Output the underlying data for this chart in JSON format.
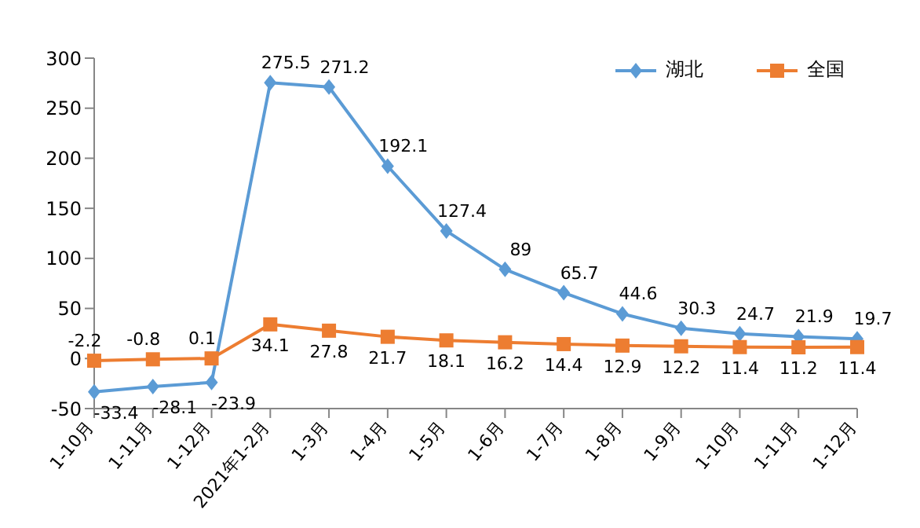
{
  "chart_data": {
    "type": "line",
    "categories": [
      "1-10月",
      "1-11月",
      "1-12月",
      "2021年1-2月",
      "1-3月",
      "1-4月",
      "1-5月",
      "1-6月",
      "1-7月",
      "1-8月",
      "1-9月",
      "1-10月",
      "1-11月",
      "1-12月"
    ],
    "series": [
      {
        "name": "湖北",
        "color": "#5b9bd5",
        "marker": "diamond",
        "values": [
          -33.4,
          -28.1,
          -23.9,
          275.5,
          271.2,
          192.1,
          127.4,
          89,
          65.7,
          44.6,
          30.3,
          24.7,
          21.9,
          19.7
        ]
      },
      {
        "name": "全国",
        "color": "#ed7d31",
        "marker": "square",
        "values": [
          -2.2,
          -0.8,
          0.1,
          34.1,
          27.8,
          21.7,
          18.1,
          16.2,
          14.4,
          12.9,
          12.2,
          11.4,
          11.2,
          11.4
        ]
      }
    ],
    "ylim": [
      -50,
      300
    ],
    "yticks": [
      -50,
      0,
      50,
      100,
      150,
      200,
      250,
      300
    ],
    "grid": false,
    "legend": "top right",
    "data_labels": true
  }
}
